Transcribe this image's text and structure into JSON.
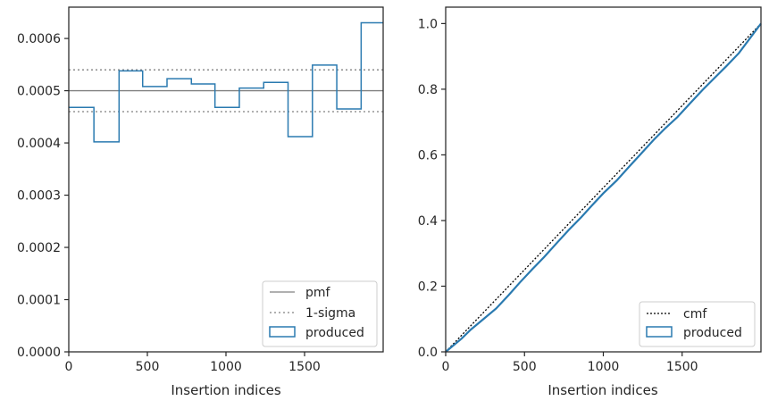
{
  "chart_data": [
    {
      "type": "step",
      "xlabel": "Insertion indices",
      "xlim": [
        0,
        2000
      ],
      "ylim": [
        0,
        0.00066
      ],
      "xticks": [
        0,
        500,
        1000,
        1500
      ],
      "xtick_labels": [
        "0",
        "500",
        "1000",
        "1500"
      ],
      "yticks": [
        0,
        0.0001,
        0.0002,
        0.0003,
        0.0004,
        0.0005,
        0.0006
      ],
      "ytick_labels": [
        "0.0000",
        "0.0001",
        "0.0002",
        "0.0003",
        "0.0004",
        "0.0005",
        "0.0006"
      ],
      "bin_edges": [
        0,
        160,
        320,
        470,
        625,
        780,
        930,
        1085,
        1240,
        1395,
        1550,
        1705,
        1860,
        2000
      ],
      "values": [
        0.000468,
        0.000402,
        0.000538,
        0.000508,
        0.000523,
        0.000513,
        0.000468,
        0.000505,
        0.000516,
        0.000412,
        0.000549,
        0.000465,
        0.00063
      ],
      "pmf": 0.0005,
      "sigma_lower": 0.00046,
      "sigma_upper": 0.00054,
      "legend_position": "lower-right",
      "legend": [
        "pmf",
        "1-sigma",
        "produced"
      ],
      "colors": {
        "produced": "#2a7ab0",
        "pmf": "#808080",
        "sigma": "#808080"
      }
    },
    {
      "type": "line",
      "xlabel": "Insertion indices",
      "xlim": [
        0,
        2000
      ],
      "ylim": [
        0,
        1.05
      ],
      "xticks": [
        0,
        500,
        1000,
        1500
      ],
      "xtick_labels": [
        "0",
        "500",
        "1000",
        "1500"
      ],
      "yticks": [
        0,
        0.2,
        0.4,
        0.6,
        0.8,
        1.0
      ],
      "ytick_labels": [
        "0.0",
        "0.2",
        "0.4",
        "0.6",
        "0.8",
        "1.0"
      ],
      "cmf": {
        "x": [
          0,
          2000
        ],
        "y": [
          0,
          1
        ]
      },
      "produced": {
        "x": [
          0,
          50,
          100,
          160,
          240,
          320,
          400,
          470,
          550,
          625,
          700,
          780,
          860,
          930,
          1000,
          1085,
          1160,
          1240,
          1320,
          1395,
          1470,
          1550,
          1630,
          1705,
          1780,
          1860,
          1930,
          2000
        ],
        "y": [
          0,
          0.02,
          0.04,
          0.068,
          0.1,
          0.132,
          0.173,
          0.211,
          0.252,
          0.289,
          0.329,
          0.371,
          0.41,
          0.447,
          0.483,
          0.522,
          0.562,
          0.604,
          0.646,
          0.682,
          0.715,
          0.757,
          0.798,
          0.834,
          0.87,
          0.91,
          0.955,
          1.0
        ]
      },
      "legend_position": "lower-right",
      "legend": [
        "cmf",
        "produced"
      ],
      "colors": {
        "produced": "#2a7ab0",
        "cmf": "#000000"
      }
    }
  ]
}
